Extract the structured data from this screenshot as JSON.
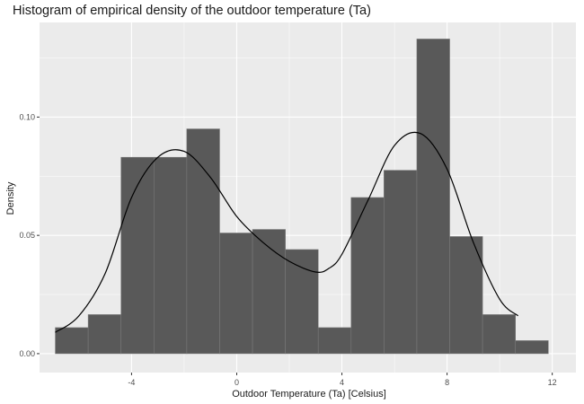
{
  "chart_data": {
    "type": "bar",
    "title": "Histogram of empirical density of the outdoor temperature (Ta)",
    "xlabel": "Outdoor Temperature (Ta) [Celsius]",
    "ylabel": "Density",
    "xlim": [
      -7.5,
      12.9
    ],
    "ylim": [
      -0.008,
      0.14
    ],
    "x_ticks": [
      -4,
      0,
      4,
      8,
      12
    ],
    "x_tick_labels": [
      "-4",
      "0",
      "4",
      "8",
      "12"
    ],
    "y_ticks": [
      0.0,
      0.05,
      0.1
    ],
    "y_tick_labels": [
      "0.00",
      "0.05",
      "0.10"
    ],
    "grid": true,
    "bins": [
      {
        "x0": -6.9,
        "x1": -5.65,
        "density": 0.011
      },
      {
        "x0": -5.65,
        "x1": -4.4,
        "density": 0.0165
      },
      {
        "x0": -4.4,
        "x1": -3.15,
        "density": 0.083
      },
      {
        "x0": -3.15,
        "x1": -1.9,
        "density": 0.083
      },
      {
        "x0": -1.9,
        "x1": -0.65,
        "density": 0.095
      },
      {
        "x0": -0.65,
        "x1": 0.6,
        "density": 0.051
      },
      {
        "x0": 0.6,
        "x1": 1.85,
        "density": 0.0525
      },
      {
        "x0": 1.85,
        "x1": 3.1,
        "density": 0.044
      },
      {
        "x0": 3.1,
        "x1": 4.35,
        "density": 0.011
      },
      {
        "x0": 4.35,
        "x1": 5.6,
        "density": 0.066
      },
      {
        "x0": 5.6,
        "x1": 6.85,
        "density": 0.0775
      },
      {
        "x0": 6.85,
        "x1": 8.1,
        "density": 0.133
      },
      {
        "x0": 8.1,
        "x1": 9.35,
        "density": 0.0495
      },
      {
        "x0": 9.35,
        "x1": 10.6,
        "density": 0.0165
      },
      {
        "x0": 10.6,
        "x1": 11.85,
        "density": 0.0055
      }
    ],
    "density_curve": {
      "x": [
        -6.9,
        -6.0,
        -5.0,
        -4.0,
        -3.0,
        -2.0,
        -1.0,
        0.0,
        1.0,
        2.0,
        3.0,
        3.5,
        4.0,
        5.0,
        6.0,
        7.0,
        8.0,
        9.0,
        10.0,
        10.7
      ],
      "y": [
        0.009,
        0.016,
        0.034,
        0.066,
        0.083,
        0.0855,
        0.0745,
        0.058,
        0.047,
        0.039,
        0.0345,
        0.036,
        0.042,
        0.065,
        0.088,
        0.093,
        0.078,
        0.047,
        0.023,
        0.016
      ]
    },
    "colors": {
      "panel": "#ebebeb",
      "grid_major": "#ffffff",
      "bar_fill": "#595959",
      "bar_outline": "#7a7a7a",
      "curve": "#000000"
    }
  }
}
